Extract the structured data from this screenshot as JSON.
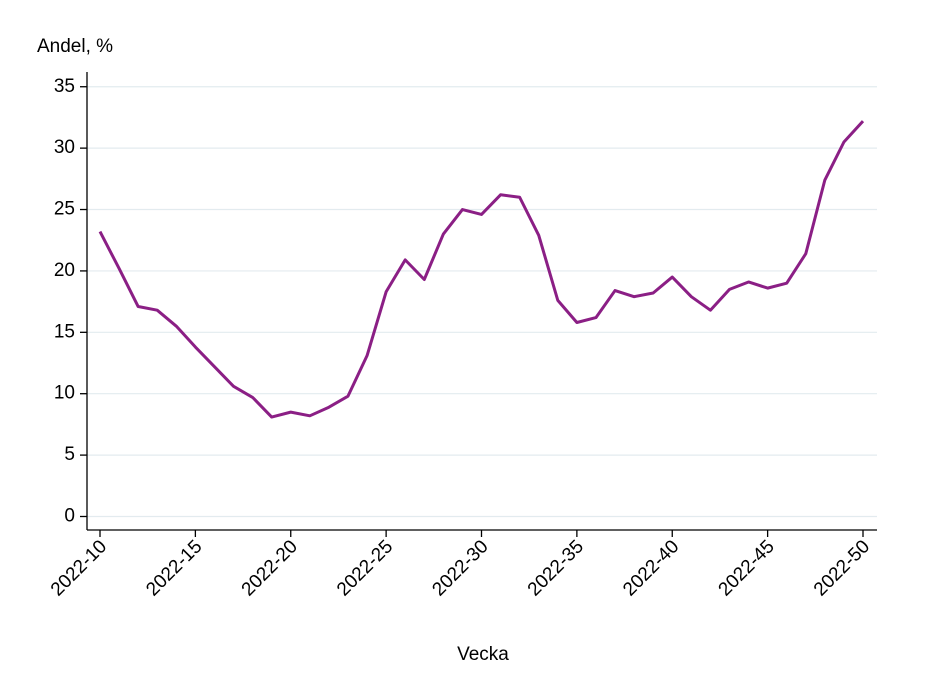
{
  "chart_data": {
    "type": "line",
    "y_label": "Andel, %",
    "x_label": "Vecka",
    "categories": [
      "2022-10",
      null,
      null,
      null,
      null,
      "2022-15",
      null,
      null,
      null,
      null,
      "2022-20",
      null,
      null,
      null,
      null,
      "2022-25",
      null,
      null,
      null,
      null,
      "2022-30",
      null,
      null,
      null,
      null,
      "2022-35",
      null,
      null,
      null,
      null,
      "2022-40",
      null,
      null,
      null,
      null,
      "2022-45",
      null,
      null,
      null,
      null,
      "2022-50"
    ],
    "series": [
      {
        "name": "Andel",
        "color": "#8b1f85",
        "values": [
          23.2,
          20.2,
          17.1,
          16.8,
          15.5,
          13.8,
          12.2,
          10.6,
          9.7,
          8.1,
          8.5,
          8.2,
          8.9,
          9.8,
          13.1,
          18.3,
          20.9,
          19.3,
          23.0,
          25.0,
          24.6,
          26.2,
          26.0,
          22.9,
          17.6,
          15.8,
          16.2,
          18.4,
          17.9,
          18.2,
          19.5,
          17.9,
          16.8,
          18.5,
          19.1,
          18.6,
          19.0,
          21.4,
          27.4,
          30.5,
          32.2
        ]
      }
    ],
    "ylim": [
      -1.1,
      36.2
    ],
    "yticks": [
      0,
      5,
      10,
      15,
      20,
      25,
      30,
      35
    ],
    "grid": true
  }
}
